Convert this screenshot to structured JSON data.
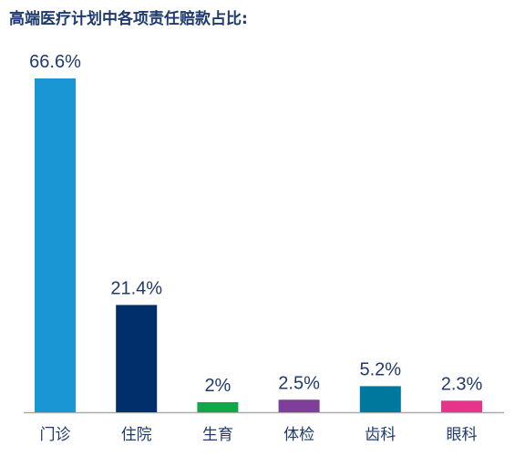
{
  "chart_data": {
    "type": "bar",
    "title": "高端医疗计划中各项责任赔款占比:",
    "xlabel": "",
    "ylabel": "",
    "categories": [
      "门诊",
      "住院",
      "生育",
      "体检",
      "齿科",
      "眼科"
    ],
    "values": [
      66.6,
      21.4,
      2,
      2.5,
      5.2,
      2.3
    ],
    "value_labels": [
      "66.6%",
      "21.4%",
      "2%",
      "2.5%",
      "5.2%",
      "2.3%"
    ],
    "colors": [
      "#1a96d4",
      "#002f6c",
      "#12a54a",
      "#7d3f98",
      "#00789e",
      "#e5348a"
    ],
    "ylim": [
      0,
      70
    ],
    "grid": false,
    "legend": "none",
    "baseline_color": "#a7a9ac",
    "text_color": "#1f3a6e"
  }
}
